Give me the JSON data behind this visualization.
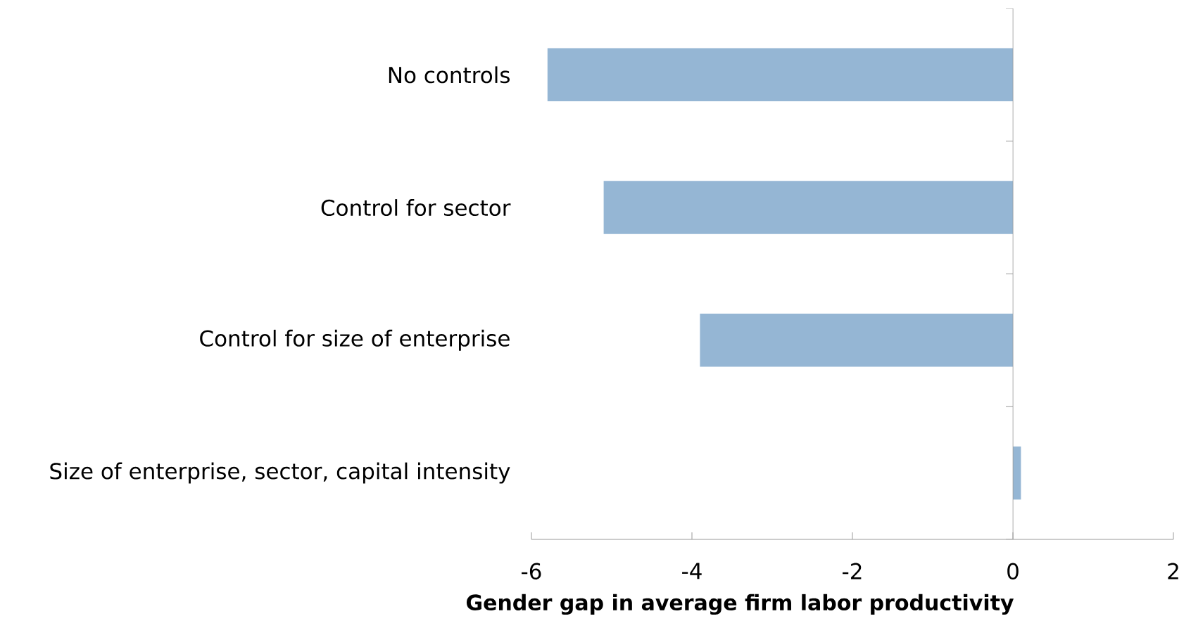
{
  "chart_data": {
    "type": "bar",
    "orientation": "horizontal",
    "xlabel": "Gender gap in average firm labor productivity",
    "categories": [
      "No controls",
      "Control for sector",
      "Control for size of enterprise",
      "Size of enterprise, sector, capital intensity"
    ],
    "values": [
      -5.8,
      -5.1,
      -3.9,
      0.1
    ],
    "color": "#95b6d4",
    "xlim": [
      -6,
      2
    ],
    "xticks": [
      -6,
      -4,
      -2,
      0,
      2
    ]
  }
}
